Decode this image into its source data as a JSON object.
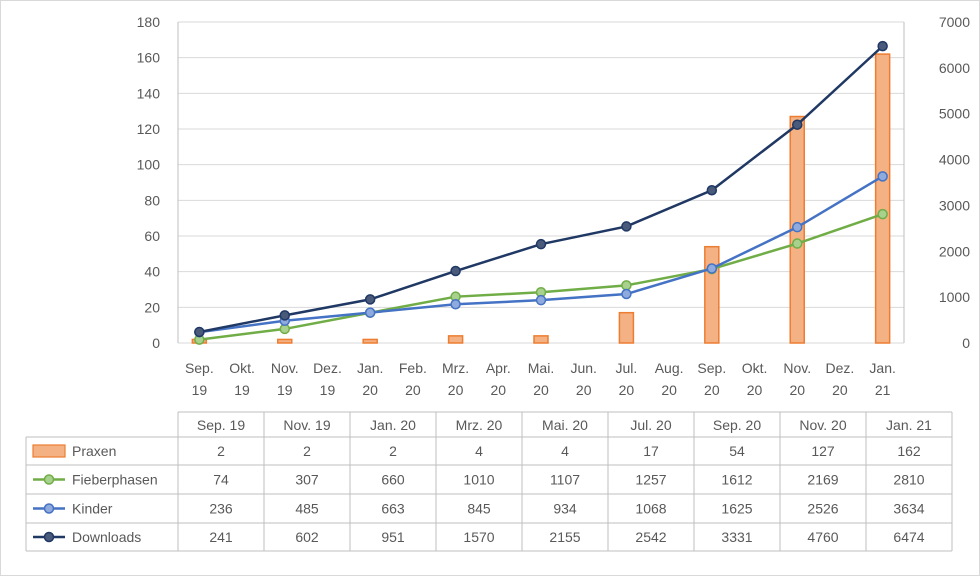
{
  "chart_data": {
    "type": "bar+line",
    "title": "",
    "xlabel": "",
    "ylabel": "",
    "x_ticks": [
      "Sep. 19",
      "Okt. 19",
      "Nov. 19",
      "Dez. 19",
      "Jan. 20",
      "Feb. 20",
      "Mrz. 20",
      "Apr. 20",
      "Mai. 20",
      "Jun. 20",
      "Jul. 20",
      "Aug. 20",
      "Sep. 20",
      "Okt. 20",
      "Nov. 20",
      "Dez. 20",
      "Jan. 21"
    ],
    "categories": [
      "Sep. 19",
      "Nov. 19",
      "Jan. 20",
      "Mrz. 20",
      "Mai. 20",
      "Jul. 20",
      "Sep. 20",
      "Nov. 20",
      "Jan. 21"
    ],
    "category_month_index": [
      0,
      2,
      4,
      6,
      8,
      10,
      12,
      14,
      16
    ],
    "y_left": {
      "min": 0,
      "max": 180,
      "ticks": [
        0,
        20,
        40,
        60,
        80,
        100,
        120,
        140,
        160,
        180
      ]
    },
    "y_right": {
      "min": 0,
      "max": 7000,
      "ticks": [
        0,
        1000,
        2000,
        3000,
        4000,
        5000,
        6000,
        7000
      ]
    },
    "series": [
      {
        "name": "Praxen",
        "type": "bar",
        "axis": "left",
        "color": "#f4b183",
        "stroke": "#ed7d31",
        "values": [
          2,
          2,
          2,
          4,
          4,
          17,
          54,
          127,
          162
        ]
      },
      {
        "name": "Fieberphasen",
        "type": "line",
        "axis": "right",
        "color": "#70ad47",
        "marker": "#a9d18e",
        "values": [
          74,
          307,
          660,
          1010,
          1107,
          1257,
          1612,
          2169,
          2810
        ]
      },
      {
        "name": "Kinder",
        "type": "line",
        "axis": "right",
        "color": "#4472c4",
        "marker": "#8faadc",
        "values": [
          236,
          485,
          663,
          845,
          934,
          1068,
          1625,
          2526,
          3634
        ]
      },
      {
        "name": "Downloads",
        "type": "line",
        "axis": "right",
        "color": "#203864",
        "marker": "#4a5a7a",
        "values": [
          241,
          602,
          951,
          1570,
          2155,
          2542,
          3331,
          4760,
          6474
        ]
      }
    ],
    "data_table": true,
    "grid": true
  }
}
